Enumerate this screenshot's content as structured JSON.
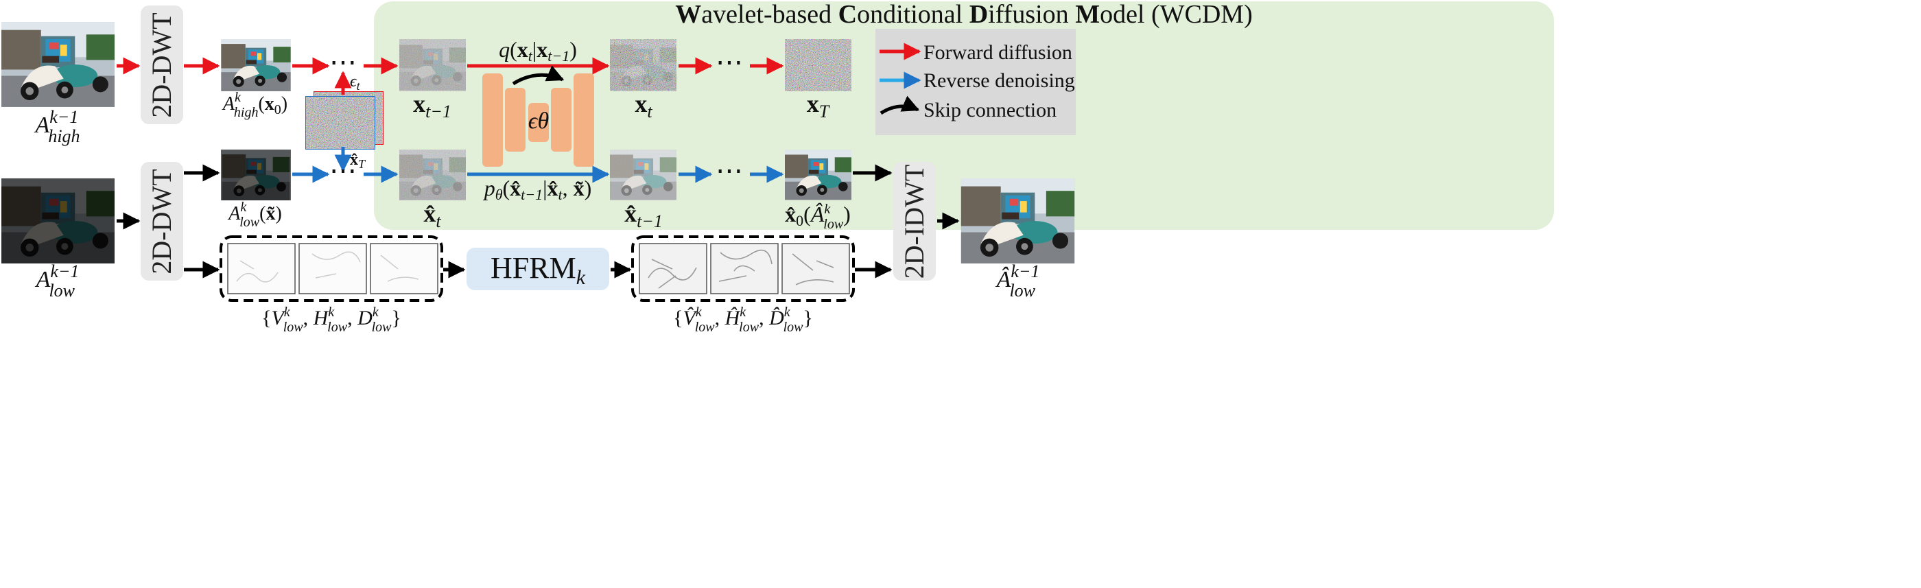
{
  "title": {
    "full": "Wavelet-based Conditional Diffusion Model (WCDM)",
    "parts": [
      {
        "t": "W",
        "bold": true
      },
      {
        "t": "avelet-based ",
        "bold": false
      },
      {
        "t": "C",
        "bold": true
      },
      {
        "t": "onditional ",
        "bold": false
      },
      {
        "t": "D",
        "bold": true
      },
      {
        "t": "iffusion ",
        "bold": false
      },
      {
        "t": "M",
        "bold": true
      },
      {
        "t": "odel (WCDM)",
        "bold": false
      }
    ]
  },
  "blocks": {
    "dwt_top": "2D-DWT",
    "dwt_bottom": "2D-DWT",
    "idwt": "2D-IDWT",
    "hfrm": "HFRM",
    "hfrm_sub": "k",
    "unet": "ϵθ"
  },
  "legend": {
    "forward": "Forward diffusion",
    "reverse": "Reverse denoising",
    "skip": "Skip connection"
  },
  "labels": {
    "input_high": "A^{k-1}_{high}",
    "input_low": "A^{k-1}_{low}",
    "output_low": "Â^{k-1}_{low}",
    "a_high_x0": "A^k_{high}(x_0)",
    "a_low_xtilde": "A^k_{low}(x̃)",
    "eps_t": "ϵ_t",
    "xhat_T": "x̂_T",
    "x_tm1": "x_{t-1}",
    "x_t": "x_t",
    "x_T": "x_T",
    "xhat_t": "x̂_t",
    "xhat_tm1": "x̂_{t-1}",
    "xhat_0": "x̂_0(Â^k_{low})",
    "q_formula": "q(x_t|x_{t-1})",
    "p_formula": "p_θ(x̂_{t-1}|x̂_t, x̃)",
    "set_in": "{V^k_{low}, H^k_{low}, D^k_{low}}",
    "set_out": "{V̂^k_{low}, Ĥ^k_{low}, D̂^k_{low}}",
    "dots": "⋯"
  },
  "colors": {
    "forward": "#e8141b",
    "reverse": "#1f74c8",
    "skip": "#000000",
    "panel": "#e2efd9",
    "block": "#e8e8e8",
    "legend_bg": "#d9d9d9",
    "hfrm_bg": "#dbe9f7",
    "unet": "#f4b183"
  }
}
